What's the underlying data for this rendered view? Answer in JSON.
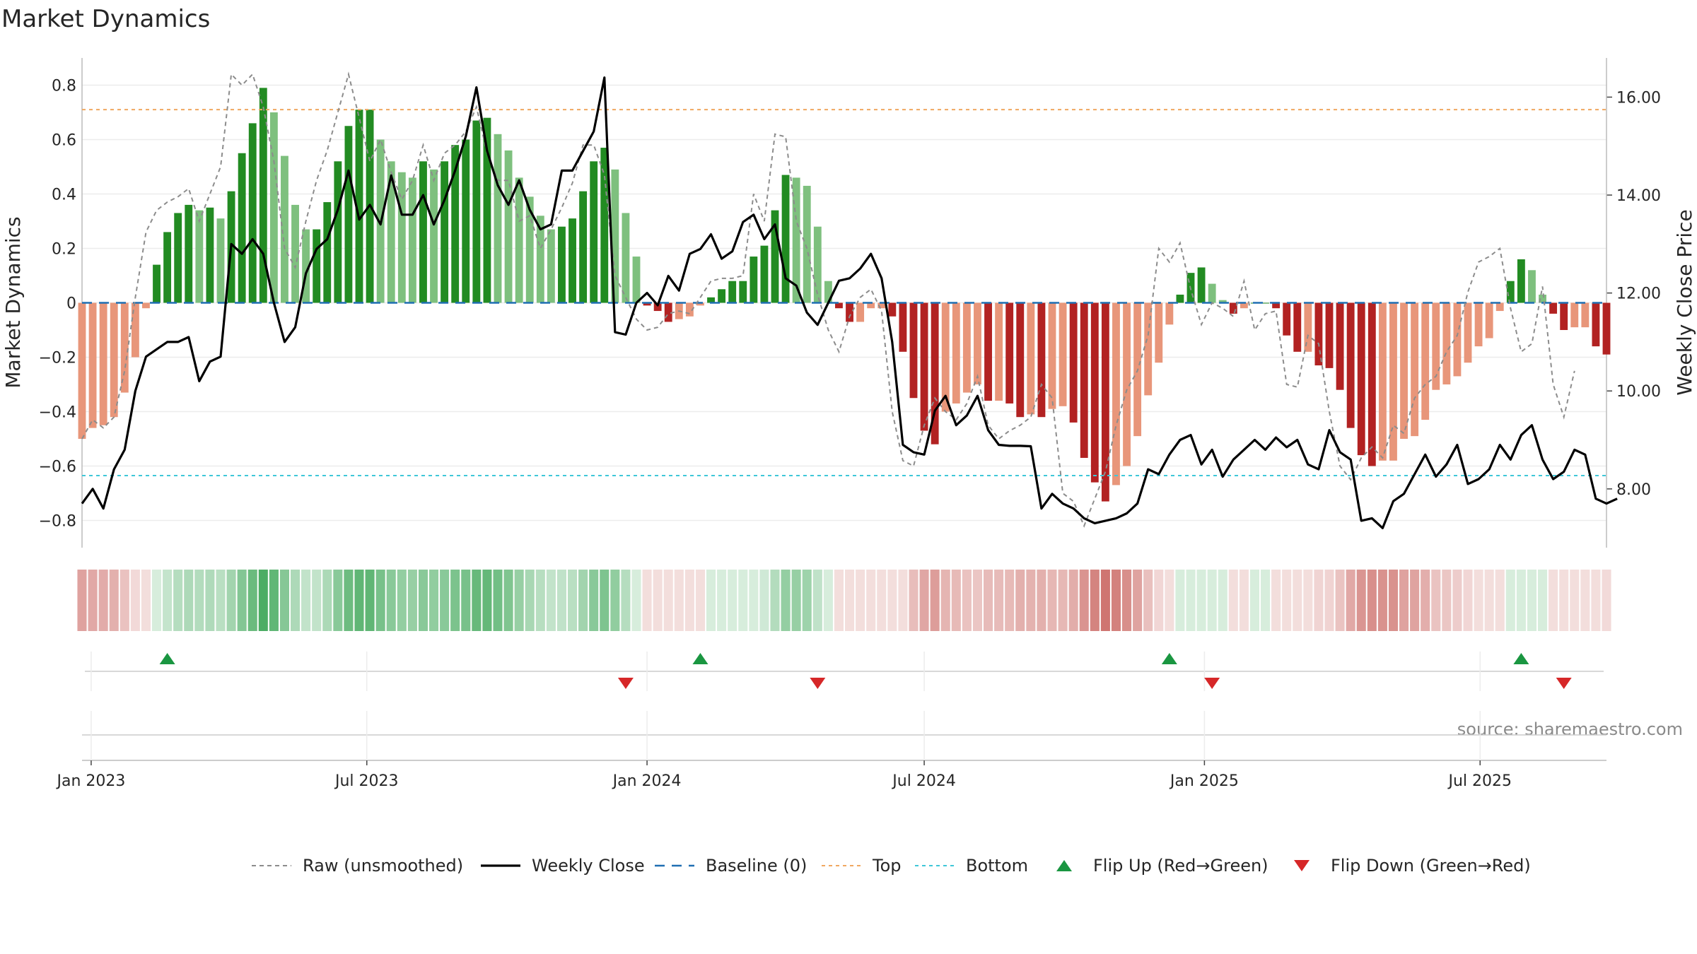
{
  "chart_data": {
    "type": "bar",
    "title": "Market Dynamics",
    "ylabel": "Market Dynamics",
    "y2label": "Weekly Close Price",
    "ylim": [
      -0.9,
      0.9
    ],
    "y2lim": [
      6.8,
      16.8
    ],
    "yticks": [
      0.8,
      0.6,
      0.4,
      0.2,
      0,
      -0.2,
      -0.4,
      -0.6,
      -0.8
    ],
    "ytick_labels": [
      "0.8",
      "0.6",
      "0.4",
      "0.2",
      "0",
      "−0.2",
      "−0.4",
      "−0.6",
      "−0.8"
    ],
    "y2ticks": [
      16,
      14,
      12,
      10,
      8
    ],
    "y2tick_labels": [
      "16.00",
      "14.00",
      "12.00",
      "10.00",
      "8.00"
    ],
    "x_start": "2022-12-26",
    "x_end": "2025-09-22",
    "xticks": [
      {
        "date": "2023-01-01",
        "label": "Jan 2023"
      },
      {
        "date": "2023-07-01",
        "label": "Jul 2023"
      },
      {
        "date": "2024-01-01",
        "label": "Jan 2024"
      },
      {
        "date": "2024-07-01",
        "label": "Jul 2024"
      },
      {
        "date": "2025-01-01",
        "label": "Jan 2025"
      },
      {
        "date": "2025-07-01",
        "label": "Jul 2025"
      }
    ],
    "top_level": 0.71,
    "bottom_level": -0.635,
    "baseline": 0,
    "dynamics": [
      -0.5,
      -0.46,
      -0.45,
      -0.42,
      -0.33,
      -0.2,
      -0.02,
      0.14,
      0.26,
      0.33,
      0.36,
      0.34,
      0.35,
      0.31,
      0.41,
      0.55,
      0.66,
      0.79,
      0.7,
      0.54,
      0.36,
      0.27,
      0.27,
      0.37,
      0.52,
      0.65,
      0.71,
      0.71,
      0.6,
      0.52,
      0.48,
      0.46,
      0.52,
      0.49,
      0.52,
      0.58,
      0.6,
      0.67,
      0.68,
      0.62,
      0.56,
      0.46,
      0.39,
      0.32,
      0.27,
      0.28,
      0.31,
      0.41,
      0.52,
      0.57,
      0.49,
      0.33,
      0.17,
      -0.01,
      -0.03,
      -0.07,
      -0.06,
      -0.05,
      -0.01,
      0.02,
      0.05,
      0.08,
      0.08,
      0.17,
      0.21,
      0.34,
      0.47,
      0.46,
      0.43,
      0.28,
      0.08,
      -0.02,
      -0.07,
      -0.07,
      -0.02,
      -0.02,
      -0.05,
      -0.18,
      -0.35,
      -0.47,
      -0.52,
      -0.4,
      -0.37,
      -0.33,
      -0.3,
      -0.36,
      -0.36,
      -0.37,
      -0.42,
      -0.41,
      -0.42,
      -0.39,
      -0.38,
      -0.44,
      -0.57,
      -0.66,
      -0.73,
      -0.67,
      -0.6,
      -0.49,
      -0.34,
      -0.22,
      -0.08,
      0.03,
      0.11,
      0.13,
      0.07,
      0.01,
      -0.04,
      -0.02,
      0.0,
      0.0,
      -0.02,
      -0.12,
      -0.18,
      -0.18,
      -0.23,
      -0.24,
      -0.32,
      -0.46,
      -0.56,
      -0.6,
      -0.58,
      -0.58,
      -0.5,
      -0.49,
      -0.43,
      -0.32,
      -0.3,
      -0.27,
      -0.22,
      -0.16,
      -0.13,
      -0.03,
      0.08,
      0.16,
      0.12,
      0.03,
      -0.04,
      -0.1,
      -0.09,
      -0.09,
      -0.16,
      -0.19
    ],
    "raw": [
      -0.5,
      -0.43,
      -0.46,
      -0.42,
      -0.25,
      0.02,
      0.26,
      0.34,
      0.37,
      0.39,
      0.42,
      0.3,
      0.4,
      0.5,
      0.84,
      0.8,
      0.84,
      0.72,
      0.52,
      0.2,
      0.13,
      0.3,
      0.45,
      0.56,
      0.7,
      0.84,
      0.68,
      0.52,
      0.6,
      0.48,
      0.38,
      0.45,
      0.58,
      0.45,
      0.55,
      0.58,
      0.63,
      0.72,
      0.55,
      0.45,
      0.45,
      0.3,
      0.32,
      0.2,
      0.27,
      0.35,
      0.44,
      0.58,
      0.58,
      0.47,
      0.1,
      0.02,
      -0.06,
      -0.1,
      -0.09,
      -0.04,
      -0.03,
      -0.04,
      0.02,
      0.08,
      0.09,
      0.09,
      0.1,
      0.4,
      0.3,
      0.62,
      0.61,
      0.3,
      0.2,
      0.03,
      -0.1,
      -0.18,
      -0.05,
      0.02,
      0.05,
      -0.03,
      -0.4,
      -0.58,
      -0.6,
      -0.45,
      -0.35,
      -0.4,
      -0.43,
      -0.37,
      -0.27,
      -0.45,
      -0.5,
      -0.47,
      -0.45,
      -0.42,
      -0.3,
      -0.35,
      -0.7,
      -0.73,
      -0.82,
      -0.72,
      -0.62,
      -0.45,
      -0.32,
      -0.25,
      -0.12,
      0.2,
      0.15,
      0.22,
      0.05,
      -0.08,
      0.0,
      -0.02,
      -0.05,
      0.08,
      -0.1,
      -0.04,
      -0.03,
      -0.3,
      -0.31,
      -0.12,
      -0.15,
      -0.4,
      -0.6,
      -0.65,
      -0.57,
      -0.53,
      -0.57,
      -0.45,
      -0.48,
      -0.35,
      -0.3,
      -0.27,
      -0.18,
      -0.12,
      0.04,
      0.15,
      0.17,
      0.2,
      -0.02,
      -0.18,
      -0.15,
      0.06,
      -0.3,
      -0.42,
      -0.25
    ]
  },
  "close": [
    7.7,
    8.0,
    7.6,
    8.4,
    8.8,
    10.0,
    10.7,
    10.85,
    11.0,
    11.0,
    11.1,
    10.2,
    10.6,
    10.7,
    13.0,
    12.8,
    13.1,
    12.8,
    11.8,
    11.0,
    11.3,
    12.4,
    12.9,
    13.1,
    13.7,
    14.5,
    13.5,
    13.8,
    13.4,
    14.4,
    13.6,
    13.6,
    14.0,
    13.4,
    13.9,
    14.5,
    15.2,
    16.2,
    14.9,
    14.2,
    13.8,
    14.3,
    13.7,
    13.3,
    13.4,
    14.5,
    14.5,
    14.9,
    15.3,
    16.4,
    11.2,
    11.15,
    11.8,
    12.0,
    11.75,
    12.35,
    12.05,
    12.8,
    12.9,
    13.2,
    12.7,
    12.85,
    13.45,
    13.6,
    13.1,
    13.4,
    12.3,
    12.15,
    11.6,
    11.35,
    11.8,
    12.25,
    12.3,
    12.5,
    12.8,
    12.3,
    11.0,
    8.9,
    8.75,
    8.7,
    9.6,
    9.9,
    9.3,
    9.5,
    9.9,
    9.2,
    8.9,
    8.88,
    8.88,
    8.87,
    7.6,
    7.9,
    7.7,
    7.6,
    7.4,
    7.3,
    7.35,
    7.4,
    7.5,
    7.7,
    8.4,
    8.3,
    8.7,
    9.0,
    9.1,
    8.5,
    8.8,
    8.25,
    8.6,
    8.8,
    9.0,
    8.8,
    9.05,
    8.85,
    9.0,
    8.5,
    8.4,
    9.2,
    8.75,
    8.6,
    7.35,
    7.4,
    7.2,
    7.75,
    7.9,
    8.3,
    8.7,
    8.25,
    8.5,
    8.9,
    8.1,
    8.2,
    8.4,
    8.9,
    8.6,
    9.1,
    9.3,
    8.6,
    8.2,
    8.35,
    8.8,
    8.7,
    7.8,
    7.7,
    7.8
  ],
  "flips_up": [
    "2023-02-20",
    "2024-02-05",
    "2024-12-09",
    "2025-07-28"
  ],
  "flips_down": [
    "2023-12-18",
    "2024-04-22",
    "2025-01-06",
    "2025-08-25"
  ],
  "legend": {
    "raw": "Raw (unsmoothed)",
    "close": "Weekly Close",
    "baseline": "Baseline (0)",
    "top": "Top",
    "bottom": "Bottom",
    "flip_up": "Flip Up (Red→Green)",
    "flip_down": "Flip Down (Green→Red)"
  },
  "source": "source: sharemaestro.com",
  "colors": {
    "green_dark": "#228b22",
    "green_light": "#7ec07e",
    "red_dark": "#b22222",
    "red_light": "#e8967a",
    "raw_line": "#8c8c8c",
    "close_line": "#000000",
    "baseline": "#1f6fb2",
    "top": "#f0a860",
    "bottom": "#3fc7d8",
    "marker_up": "#1a9641",
    "marker_down": "#d62728",
    "strip_green": "#41a85a",
    "strip_red": "#c8615c"
  }
}
